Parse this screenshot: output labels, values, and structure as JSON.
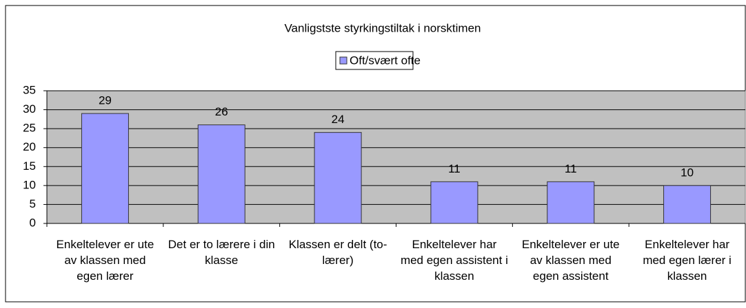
{
  "chart_data": {
    "type": "bar",
    "title": "Vanligstste styrkingstiltak i norsktimen",
    "categories": [
      "Enkeltelever er ute av klassen med egen lærer",
      "Det er to lærere i din klasse",
      "Klassen er delt (to-lærer)",
      "Enkeltelever har med egen assistent i klassen",
      "Enkeltelever er ute av klassen med egen assistent",
      "Enkeltelever har med egen lærer i klassen"
    ],
    "series": [
      {
        "name": "Oft/svært ofte",
        "color": "#9999ff",
        "values": [
          29,
          26,
          24,
          11,
          11,
          10
        ]
      }
    ],
    "ylim": [
      0,
      35
    ],
    "yticks": [
      0,
      5,
      10,
      15,
      20,
      25,
      30,
      35
    ],
    "grid": true,
    "legend": "top"
  }
}
